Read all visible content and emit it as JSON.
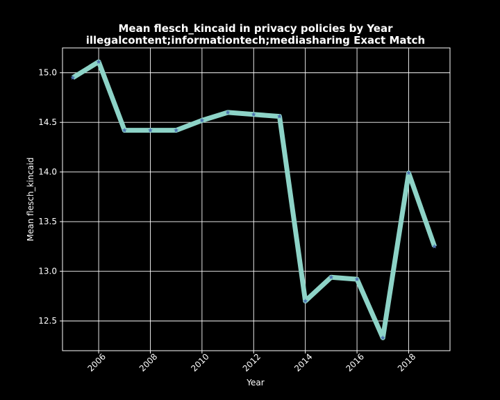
{
  "chart_data": {
    "type": "line",
    "title": "Mean flesch_kincaid in privacy policies by Year",
    "subtitle": "illegalcontent;informationtech;mediasharing Exact Match",
    "xlabel": "Year",
    "ylabel": "Mean flesch_kincaid",
    "x": [
      2005,
      2006,
      2007,
      2008,
      2009,
      2010,
      2011,
      2012,
      2013,
      2014,
      2015,
      2016,
      2017,
      2018,
      2019
    ],
    "values": [
      14.95,
      15.11,
      14.42,
      14.42,
      14.42,
      14.52,
      14.6,
      14.58,
      14.56,
      12.7,
      12.94,
      12.92,
      12.33,
      13.99,
      13.25
    ],
    "xlim": [
      2004.6,
      2019.6
    ],
    "ylim": [
      12.2,
      15.25
    ],
    "xticks": [
      2006,
      2008,
      2010,
      2012,
      2014,
      2016,
      2018
    ],
    "yticks": [
      12.5,
      13.0,
      13.5,
      14.0,
      14.5,
      15.0
    ],
    "ytick_labels": [
      "12.5",
      "13.0",
      "13.5",
      "14.0",
      "14.5",
      "15.0"
    ],
    "grid": true,
    "line_color": "#8dd3c7",
    "marker": "star",
    "marker_color": "#4c72b0",
    "background": "#000000",
    "foreground": "#ffffff"
  }
}
